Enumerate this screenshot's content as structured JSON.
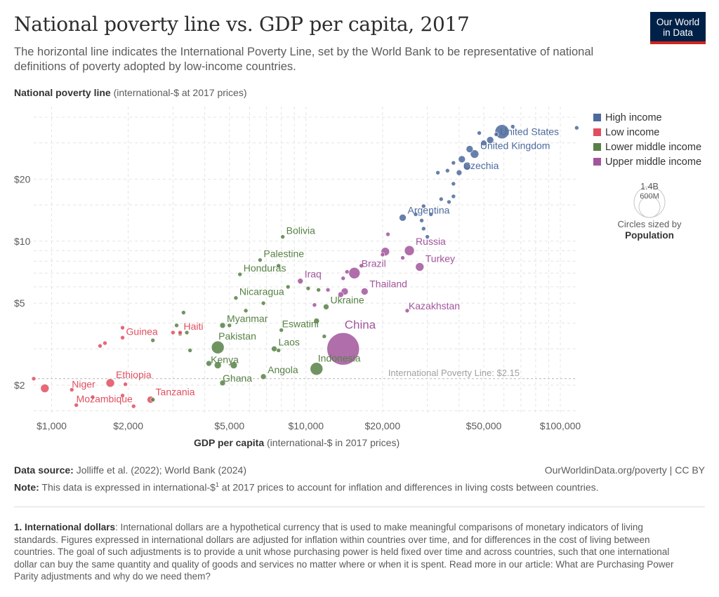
{
  "header": {
    "title": "National poverty line vs. GDP per capita, 2017",
    "subtitle": "The horizontal line indicates the International Poverty Line, set by the World Bank to be representative of national definitions of poverty adopted by low-income countries.",
    "logo_line1": "Our World",
    "logo_line2": "in Data"
  },
  "axes": {
    "y_label_bold": "National poverty line",
    "y_label_rest": " (international-$ at 2017 prices)",
    "x_label_bold": "GDP per capita",
    "x_label_rest": " (international-$ in 2017 prices)"
  },
  "legend": {
    "items": [
      {
        "label": "High income",
        "color": "#4c6a9c"
      },
      {
        "label": "Low income",
        "color": "#e04f5f"
      },
      {
        "label": "Lower middle income",
        "color": "#578145"
      },
      {
        "label": "Upper middle income",
        "color": "#a2559c"
      }
    ],
    "size_big": "1.4B",
    "size_small": "600M",
    "size_note_line1": "Circles sized by",
    "size_note_line2": "Population"
  },
  "footer": {
    "source_label": "Data source:",
    "source_text": " Jolliffe et al. (2022); World Bank (2024)",
    "credit": "OurWorldinData.org/poverty | CC BY",
    "note_label": "Note:",
    "note_text_a": " This data is expressed in international-$",
    "note_sup": "1",
    "note_text_b": " at 2017 prices to account for inflation and differences in living costs between countries.",
    "footnote_label": "1. International dollars",
    "footnote_text": ": International dollars are a hypothetical currency that is used to make meaningful comparisons of monetary indicators of living standards. Figures expressed in international dollars are adjusted for inflation within countries over time, and for differences in the cost of living between countries. The goal of such adjustments is to provide a unit whose purchasing power is held fixed over time and across countries, such that one international dollar can buy the same quantity and quality of goods and services no matter where or when it is spent. Read more in our article: What are Purchasing Power Parity adjustments and why do we need them?"
  },
  "chart_data": {
    "type": "scatter",
    "x_scale": "log",
    "y_scale": "log",
    "xlim": [
      850,
      115000
    ],
    "ylim": [
      1.45,
      45
    ],
    "x_ticks": [
      1000,
      2000,
      5000,
      10000,
      20000,
      50000,
      100000
    ],
    "x_tick_labels": [
      "$1,000",
      "$2,000",
      "$5,000",
      "$10,000",
      "$20,000",
      "$50,000",
      "$100,000"
    ],
    "y_ticks": [
      2,
      5,
      10,
      20
    ],
    "y_tick_labels": [
      "$2",
      "$5",
      "$10",
      "$20"
    ],
    "grid": true,
    "legend_position": "right",
    "reference_line": {
      "y": 2.15,
      "label": "International Poverty Line: $2.15"
    },
    "groups": {
      "high": "#4c6a9c",
      "low": "#e04f5f",
      "lower_middle": "#578145",
      "upper_middle": "#a2559c"
    },
    "points": [
      {
        "name": "United States",
        "x": 59000,
        "y": 34,
        "group": "high",
        "size": 10,
        "label": "United States"
      },
      {
        "name": "United Kingdom",
        "x": 46000,
        "y": 26.5,
        "group": "high",
        "size": 6,
        "label": "United Kingdom"
      },
      {
        "name": "Czechia",
        "x": 40000,
        "y": 21.5,
        "group": "high",
        "size": 4,
        "label": "Czechia"
      },
      {
        "name": "Argentina",
        "x": 24000,
        "y": 13,
        "group": "high",
        "size": 5,
        "label": "Argentina"
      },
      {
        "name": "",
        "x": 65000,
        "y": 36,
        "group": "high",
        "size": 3
      },
      {
        "name": "",
        "x": 116000,
        "y": 35.5,
        "group": "high",
        "size": 3
      },
      {
        "name": "",
        "x": 53000,
        "y": 31,
        "group": "high",
        "size": 5
      },
      {
        "name": "",
        "x": 50000,
        "y": 30,
        "group": "high",
        "size": 4
      },
      {
        "name": "",
        "x": 56000,
        "y": 33,
        "group": "high",
        "size": 3
      },
      {
        "name": "",
        "x": 48000,
        "y": 33.5,
        "group": "high",
        "size": 3
      },
      {
        "name": "",
        "x": 44000,
        "y": 28,
        "group": "high",
        "size": 5
      },
      {
        "name": "",
        "x": 41000,
        "y": 25,
        "group": "high",
        "size": 5
      },
      {
        "name": "",
        "x": 43000,
        "y": 23,
        "group": "high",
        "size": 5
      },
      {
        "name": "",
        "x": 38000,
        "y": 24,
        "group": "high",
        "size": 3
      },
      {
        "name": "",
        "x": 36000,
        "y": 22,
        "group": "high",
        "size": 3
      },
      {
        "name": "",
        "x": 33000,
        "y": 21.5,
        "group": "high",
        "size": 3
      },
      {
        "name": "",
        "x": 38000,
        "y": 19,
        "group": "high",
        "size": 3
      },
      {
        "name": "",
        "x": 34000,
        "y": 16,
        "group": "high",
        "size": 3
      },
      {
        "name": "",
        "x": 38000,
        "y": 16.5,
        "group": "high",
        "size": 3
      },
      {
        "name": "",
        "x": 29000,
        "y": 14.8,
        "group": "high",
        "size": 3
      },
      {
        "name": "",
        "x": 31000,
        "y": 13.5,
        "group": "high",
        "size": 3
      },
      {
        "name": "",
        "x": 28500,
        "y": 12.6,
        "group": "high",
        "size": 3
      },
      {
        "name": "",
        "x": 29000,
        "y": 11.5,
        "group": "high",
        "size": 3
      },
      {
        "name": "",
        "x": 27000,
        "y": 13.5,
        "group": "high",
        "size": 3
      },
      {
        "name": "",
        "x": 30000,
        "y": 10.5,
        "group": "high",
        "size": 3
      },
      {
        "name": "",
        "x": 36500,
        "y": 15.5,
        "group": "high",
        "size": 3
      },
      {
        "name": "Russia",
        "x": 25500,
        "y": 9,
        "group": "upper_middle",
        "size": 7,
        "label": "Russia"
      },
      {
        "name": "Turkey",
        "x": 28000,
        "y": 7.5,
        "group": "upper_middle",
        "size": 6,
        "label": "Turkey"
      },
      {
        "name": "Brazil",
        "x": 15500,
        "y": 7,
        "group": "upper_middle",
        "size": 8,
        "label": "Brazil"
      },
      {
        "name": "Iraq",
        "x": 9500,
        "y": 6.4,
        "group": "upper_middle",
        "size": 4,
        "label": "Iraq"
      },
      {
        "name": "Thailand",
        "x": 17000,
        "y": 5.7,
        "group": "upper_middle",
        "size": 5,
        "label": "Thailand"
      },
      {
        "name": "Kazakhstan",
        "x": 25000,
        "y": 4.6,
        "group": "upper_middle",
        "size": 3,
        "label": "Kazakhstan"
      },
      {
        "name": "China",
        "x": 14000,
        "y": 3,
        "group": "upper_middle",
        "size": 23,
        "label": "China"
      },
      {
        "name": "",
        "x": 20500,
        "y": 8.9,
        "group": "upper_middle",
        "size": 6
      },
      {
        "name": "",
        "x": 21000,
        "y": 10.8,
        "group": "upper_middle",
        "size": 3
      },
      {
        "name": "",
        "x": 24000,
        "y": 8.3,
        "group": "upper_middle",
        "size": 3
      },
      {
        "name": "",
        "x": 20000,
        "y": 8.6,
        "group": "upper_middle",
        "size": 3
      },
      {
        "name": "",
        "x": 14500,
        "y": 7.1,
        "group": "upper_middle",
        "size": 3
      },
      {
        "name": "",
        "x": 14000,
        "y": 6.6,
        "group": "upper_middle",
        "size": 3
      },
      {
        "name": "",
        "x": 16500,
        "y": 7.6,
        "group": "upper_middle",
        "size": 3
      },
      {
        "name": "",
        "x": 14200,
        "y": 5.7,
        "group": "upper_middle",
        "size": 5
      },
      {
        "name": "",
        "x": 13700,
        "y": 5.5,
        "group": "upper_middle",
        "size": 4
      },
      {
        "name": "",
        "x": 10800,
        "y": 4.9,
        "group": "upper_middle",
        "size": 3
      },
      {
        "name": "",
        "x": 12200,
        "y": 5.8,
        "group": "upper_middle",
        "size": 3
      },
      {
        "name": "Bolivia",
        "x": 8100,
        "y": 10.5,
        "group": "lower_middle",
        "size": 3,
        "label": "Bolivia"
      },
      {
        "name": "Palestine",
        "x": 6600,
        "y": 8.1,
        "group": "lower_middle",
        "size": 3,
        "label": "Palestine"
      },
      {
        "name": "Honduras",
        "x": 5500,
        "y": 6.9,
        "group": "lower_middle",
        "size": 3,
        "label": "Honduras"
      },
      {
        "name": "Nicaragua",
        "x": 5300,
        "y": 5.3,
        "group": "lower_middle",
        "size": 3,
        "label": "Nicaragua"
      },
      {
        "name": "Ukraine",
        "x": 12000,
        "y": 4.8,
        "group": "lower_middle",
        "size": 4,
        "label": "Ukraine"
      },
      {
        "name": "Myanmar",
        "x": 4700,
        "y": 3.9,
        "group": "lower_middle",
        "size": 4,
        "label": "Myanmar"
      },
      {
        "name": "Eswatini",
        "x": 8000,
        "y": 3.7,
        "group": "lower_middle",
        "size": 3,
        "label": "Eswatini"
      },
      {
        "name": "Pakistan",
        "x": 4500,
        "y": 3.05,
        "group": "lower_middle",
        "size": 9,
        "label": "Pakistan"
      },
      {
        "name": "Laos",
        "x": 7500,
        "y": 3,
        "group": "lower_middle",
        "size": 4,
        "label": "Laos"
      },
      {
        "name": "Kenya",
        "x": 4500,
        "y": 2.5,
        "group": "lower_middle",
        "size": 5,
        "label": "Kenya"
      },
      {
        "name": "Indonesia",
        "x": 11000,
        "y": 2.4,
        "group": "lower_middle",
        "size": 9,
        "label": "Indonesia"
      },
      {
        "name": "Angola",
        "x": 6800,
        "y": 2.2,
        "group": "lower_middle",
        "size": 4,
        "label": "Angola"
      },
      {
        "name": "Ghana",
        "x": 4700,
        "y": 2.05,
        "group": "lower_middle",
        "size": 4,
        "label": "Ghana"
      },
      {
        "name": "",
        "x": 3300,
        "y": 4.5,
        "group": "lower_middle",
        "size": 3
      },
      {
        "name": "",
        "x": 5000,
        "y": 3.9,
        "group": "lower_middle",
        "size": 3
      },
      {
        "name": "",
        "x": 3100,
        "y": 3.9,
        "group": "lower_middle",
        "size": 3
      },
      {
        "name": "",
        "x": 3200,
        "y": 3.55,
        "group": "lower_middle",
        "size": 3
      },
      {
        "name": "",
        "x": 3400,
        "y": 3.6,
        "group": "lower_middle",
        "size": 3
      },
      {
        "name": "",
        "x": 2500,
        "y": 3.3,
        "group": "lower_middle",
        "size": 3
      },
      {
        "name": "",
        "x": 3500,
        "y": 2.95,
        "group": "lower_middle",
        "size": 3
      },
      {
        "name": "",
        "x": 5800,
        "y": 4.6,
        "group": "lower_middle",
        "size": 3
      },
      {
        "name": "",
        "x": 6800,
        "y": 5.0,
        "group": "lower_middle",
        "size": 3
      },
      {
        "name": "",
        "x": 7800,
        "y": 7.6,
        "group": "lower_middle",
        "size": 3
      },
      {
        "name": "",
        "x": 10200,
        "y": 5.9,
        "group": "lower_middle",
        "size": 3
      },
      {
        "name": "",
        "x": 11200,
        "y": 5.8,
        "group": "lower_middle",
        "size": 3
      },
      {
        "name": "",
        "x": 8500,
        "y": 6.0,
        "group": "lower_middle",
        "size": 3
      },
      {
        "name": "",
        "x": 11000,
        "y": 4.1,
        "group": "lower_middle",
        "size": 4
      },
      {
        "name": "",
        "x": 11800,
        "y": 3.45,
        "group": "lower_middle",
        "size": 3
      },
      {
        "name": "",
        "x": 4150,
        "y": 2.55,
        "group": "lower_middle",
        "size": 4
      },
      {
        "name": "",
        "x": 5200,
        "y": 2.5,
        "group": "lower_middle",
        "size": 5
      },
      {
        "name": "",
        "x": 7800,
        "y": 2.95,
        "group": "lower_middle",
        "size": 3
      },
      {
        "name": "",
        "x": 2500,
        "y": 1.7,
        "group": "lower_middle",
        "size": 3
      },
      {
        "name": "Guinea",
        "x": 1900,
        "y": 3.4,
        "group": "low",
        "size": 3,
        "label": "Guinea"
      },
      {
        "name": "Haiti",
        "x": 3200,
        "y": 3.6,
        "group": "low",
        "size": 3,
        "label": "Haiti"
      },
      {
        "name": "Ethiopia",
        "x": 1700,
        "y": 2.05,
        "group": "low",
        "size": 6,
        "label": "Ethiopia"
      },
      {
        "name": "Niger",
        "x": 1200,
        "y": 1.9,
        "group": "low",
        "size": 3,
        "label": "Niger"
      },
      {
        "name": "Mozambique",
        "x": 1250,
        "y": 1.6,
        "group": "low",
        "size": 3,
        "label": "Mozambique"
      },
      {
        "name": "Tanzania",
        "x": 2450,
        "y": 1.7,
        "group": "low",
        "size": 5,
        "label": "Tanzania"
      },
      {
        "name": "",
        "x": 850,
        "y": 2.15,
        "group": "low",
        "size": 3
      },
      {
        "name": "",
        "x": 940,
        "y": 1.93,
        "group": "low",
        "size": 6
      },
      {
        "name": "",
        "x": 1900,
        "y": 3.8,
        "group": "low",
        "size": 3
      },
      {
        "name": "",
        "x": 1550,
        "y": 3.1,
        "group": "low",
        "size": 3
      },
      {
        "name": "",
        "x": 1620,
        "y": 3.2,
        "group": "low",
        "size": 3
      },
      {
        "name": "",
        "x": 1950,
        "y": 2.02,
        "group": "low",
        "size": 3
      },
      {
        "name": "",
        "x": 1900,
        "y": 1.78,
        "group": "low",
        "size": 3
      },
      {
        "name": "",
        "x": 1450,
        "y": 1.75,
        "group": "low",
        "size": 3
      },
      {
        "name": "",
        "x": 3000,
        "y": 3.6,
        "group": "low",
        "size": 3
      },
      {
        "name": "",
        "x": 2100,
        "y": 1.58,
        "group": "low",
        "size": 3
      }
    ]
  }
}
